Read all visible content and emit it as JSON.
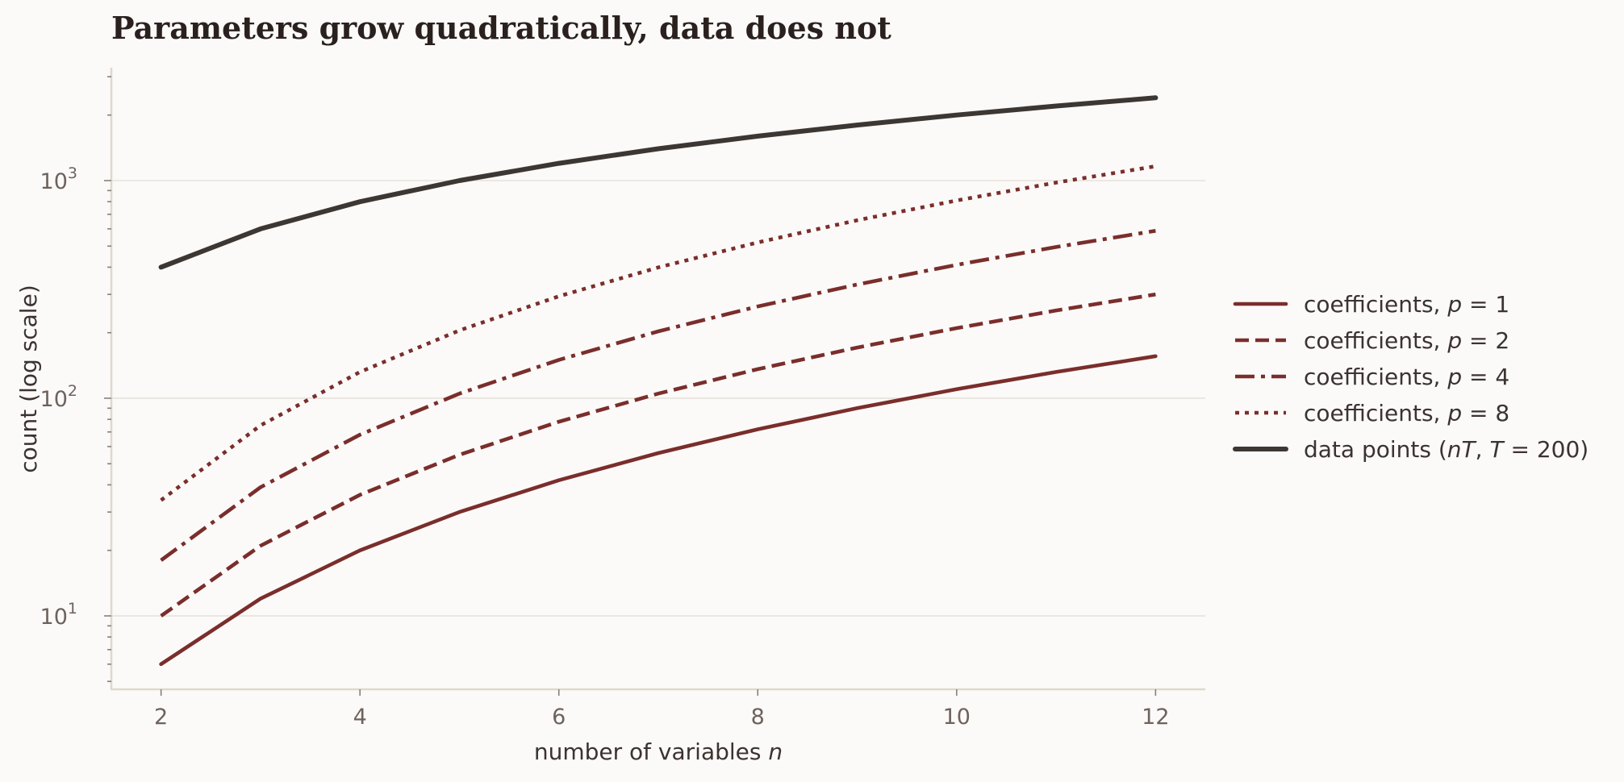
{
  "chart_data": {
    "type": "line",
    "title": "Parameters grow quadratically, data does not",
    "xlabel": "number of variables n",
    "ylabel": "count (log scale)",
    "yscale": "log",
    "xlim": [
      1.5,
      12.5
    ],
    "ylim": [
      4.6,
      3300
    ],
    "x_ticks": [
      2,
      4,
      6,
      8,
      10,
      12
    ],
    "y_ticks": [
      {
        "value": 10,
        "base": "10",
        "exp": "1"
      },
      {
        "value": 100,
        "base": "10",
        "exp": "2"
      },
      {
        "value": 1000,
        "base": "10",
        "exp": "3"
      }
    ],
    "grid": "horizontal",
    "legend_position": "right, outside",
    "x": [
      2,
      3,
      4,
      5,
      6,
      7,
      8,
      9,
      10,
      11,
      12
    ],
    "series": [
      {
        "name": "coefficients, p = 1",
        "legend": {
          "prefix": "coefficients, ",
          "var": "p",
          "rest": " = 1"
        },
        "style": "solid",
        "color": "#7a2e2b",
        "values": [
          6,
          12,
          20,
          30,
          42,
          56,
          72,
          90,
          110,
          132,
          156
        ]
      },
      {
        "name": "coefficients, p = 2",
        "legend": {
          "prefix": "coefficients, ",
          "var": "p",
          "rest": " = 2"
        },
        "style": "dashed",
        "color": "#7a2e2b",
        "values": [
          10,
          21,
          36,
          55,
          78,
          105,
          136,
          171,
          210,
          253,
          300
        ]
      },
      {
        "name": "coefficients, p = 4",
        "legend": {
          "prefix": "coefficients, ",
          "var": "p",
          "rest": " = 4"
        },
        "style": "dashdot",
        "color": "#7a2e2b",
        "values": [
          18,
          39,
          68,
          105,
          150,
          203,
          264,
          333,
          410,
          495,
          588
        ]
      },
      {
        "name": "coefficients, p = 8",
        "legend": {
          "prefix": "coefficients, ",
          "var": "p",
          "rest": " = 8"
        },
        "style": "dotted",
        "color": "#7a2e2b",
        "values": [
          34,
          75,
          132,
          205,
          294,
          399,
          520,
          657,
          810,
          979,
          1164
        ]
      },
      {
        "name": "data points (nT, T = 200)",
        "legend": {
          "prefix": "data points (",
          "var": "nT",
          "mid": ", ",
          "var2": "T",
          "rest": " = 200)"
        },
        "style": "solid-thick",
        "color": "#3d3733",
        "values": [
          400,
          600,
          800,
          1000,
          1200,
          1400,
          1600,
          1800,
          2000,
          2200,
          2400
        ]
      }
    ]
  }
}
